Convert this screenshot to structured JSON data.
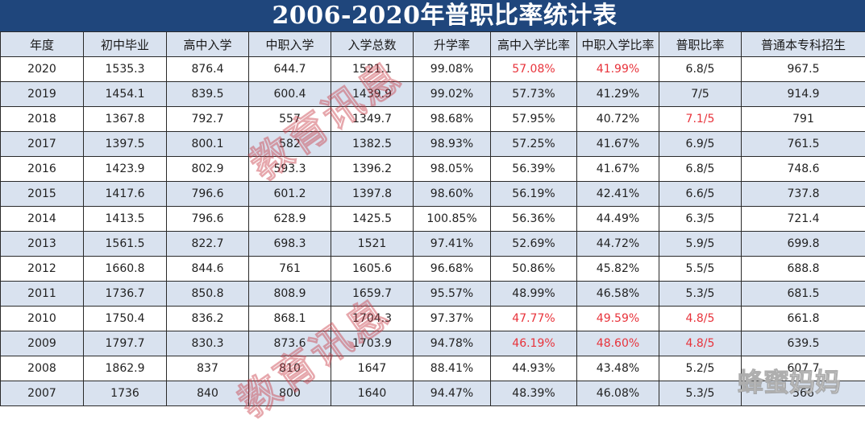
{
  "title": "2006-2020年普职比率统计表",
  "headers": [
    "年度",
    "初中毕业",
    "高中入学",
    "中职入学",
    "入学总数",
    "升学率",
    "高中入学比率",
    "中职入学比率",
    "普职比率",
    "普通本专科招生"
  ],
  "rows": [
    {
      "year": "2020",
      "grad": "1535.3",
      "hs": "876.4",
      "voc": "644.7",
      "total": "1521.1",
      "rate": "99.08%",
      "hs_ratio": "57.08%",
      "voc_ratio": "41.99%",
      "pv": "6.8/5",
      "college": "967.5",
      "red": [
        6,
        7
      ]
    },
    {
      "year": "2019",
      "grad": "1454.1",
      "hs": "839.5",
      "voc": "600.4",
      "total": "1439.9",
      "rate": "99.02%",
      "hs_ratio": "57.73%",
      "voc_ratio": "41.29%",
      "pv": "7/5",
      "college": "914.9",
      "red": []
    },
    {
      "year": "2018",
      "grad": "1367.8",
      "hs": "792.7",
      "voc": "557",
      "total": "1349.7",
      "rate": "98.68%",
      "hs_ratio": "57.95%",
      "voc_ratio": "40.72%",
      "pv": "7.1/5",
      "college": "791",
      "red": [
        8
      ]
    },
    {
      "year": "2017",
      "grad": "1397.5",
      "hs": "800.1",
      "voc": "582",
      "total": "1382.5",
      "rate": "98.93%",
      "hs_ratio": "57.25%",
      "voc_ratio": "41.67%",
      "pv": "6.9/5",
      "college": "761.5",
      "red": []
    },
    {
      "year": "2016",
      "grad": "1423.9",
      "hs": "802.9",
      "voc": "593.3",
      "total": "1396.2",
      "rate": "98.05%",
      "hs_ratio": "56.39%",
      "voc_ratio": "41.67%",
      "pv": "6.8/5",
      "college": "748.6",
      "red": []
    },
    {
      "year": "2015",
      "grad": "1417.6",
      "hs": "796.6",
      "voc": "601.2",
      "total": "1397.8",
      "rate": "98.60%",
      "hs_ratio": "56.19%",
      "voc_ratio": "42.41%",
      "pv": "6.6/5",
      "college": "737.8",
      "red": []
    },
    {
      "year": "2014",
      "grad": "1413.5",
      "hs": "796.6",
      "voc": "628.9",
      "total": "1425.5",
      "rate": "100.85%",
      "hs_ratio": "56.36%",
      "voc_ratio": "44.49%",
      "pv": "6.3/5",
      "college": "721.4",
      "red": []
    },
    {
      "year": "2013",
      "grad": "1561.5",
      "hs": "822.7",
      "voc": "698.3",
      "total": "1521",
      "rate": "97.41%",
      "hs_ratio": "52.69%",
      "voc_ratio": "44.72%",
      "pv": "5.9/5",
      "college": "699.8",
      "red": []
    },
    {
      "year": "2012",
      "grad": "1660.8",
      "hs": "844.6",
      "voc": "761",
      "total": "1605.6",
      "rate": "96.68%",
      "hs_ratio": "50.86%",
      "voc_ratio": "45.82%",
      "pv": "5.5/5",
      "college": "688.8",
      "red": []
    },
    {
      "year": "2011",
      "grad": "1736.7",
      "hs": "850.8",
      "voc": "808.9",
      "total": "1659.7",
      "rate": "95.57%",
      "hs_ratio": "48.99%",
      "voc_ratio": "46.58%",
      "pv": "5.3/5",
      "college": "681.5",
      "red": []
    },
    {
      "year": "2010",
      "grad": "1750.4",
      "hs": "836.2",
      "voc": "868.1",
      "total": "1704.3",
      "rate": "97.37%",
      "hs_ratio": "47.77%",
      "voc_ratio": "49.59%",
      "pv": "4.8/5",
      "college": "661.8",
      "red": [
        6,
        7,
        8
      ]
    },
    {
      "year": "2009",
      "grad": "1797.7",
      "hs": "830.3",
      "voc": "873.6",
      "total": "1703.9",
      "rate": "94.78%",
      "hs_ratio": "46.19%",
      "voc_ratio": "48.60%",
      "pv": "4.8/5",
      "college": "639.5",
      "red": [
        6,
        7,
        8
      ]
    },
    {
      "year": "2008",
      "grad": "1862.9",
      "hs": "837",
      "voc": "810",
      "total": "1647",
      "rate": "88.41%",
      "hs_ratio": "44.93%",
      "voc_ratio": "43.48%",
      "pv": "5.2/5",
      "college": "607.7",
      "red": []
    },
    {
      "year": "2007",
      "grad": "1736",
      "hs": "840",
      "voc": "800",
      "total": "1640",
      "rate": "94.47%",
      "hs_ratio": "48.39%",
      "voc_ratio": "46.08%",
      "pv": "5.3/5",
      "college": "566",
      "red": []
    }
  ],
  "watermarks": {
    "main": "教育讯息",
    "corner": "蜂蜜妈妈"
  },
  "colors": {
    "title_bg": "#1f467c",
    "header_bg": "#d9e2ef",
    "stripe": "#d9e2ef",
    "highlight": "#e8333b"
  }
}
